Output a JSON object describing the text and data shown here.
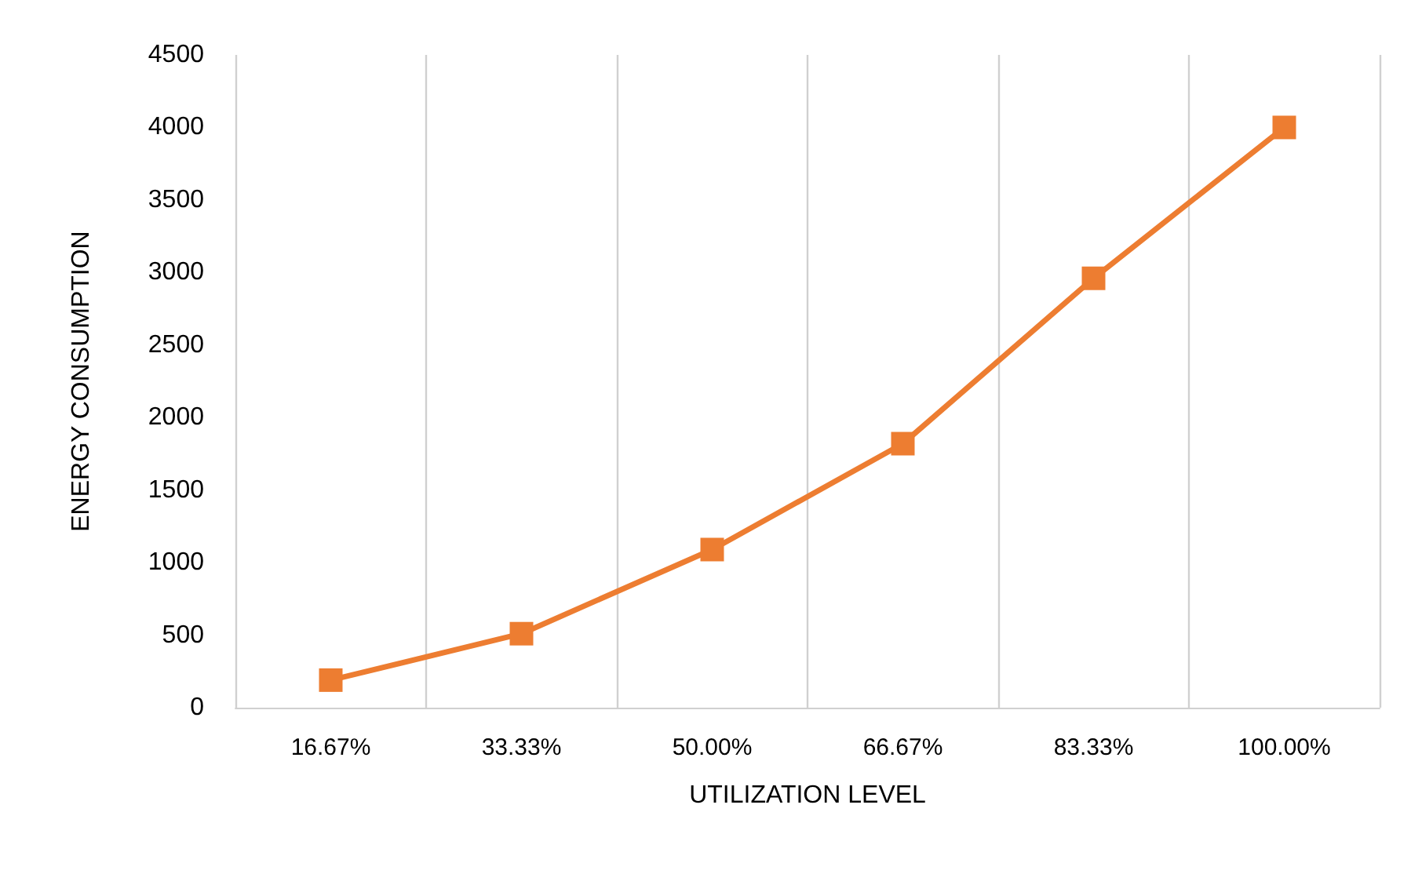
{
  "chart_data": {
    "type": "line",
    "xlabel": "UTILIZATION LEVEL",
    "ylabel": "ENERGY CONSUMPTION",
    "categories": [
      "16.67%",
      "33.33%",
      "50.00%",
      "66.67%",
      "83.33%",
      "100.00%"
    ],
    "series": [
      {
        "color": "#ed7d31",
        "values": [
          190,
          510,
          1090,
          1820,
          2960,
          4000
        ]
      }
    ],
    "ylim": [
      0,
      4500
    ],
    "yticks": [
      0,
      500,
      1000,
      1500,
      2000,
      2500,
      3000,
      3500,
      4000,
      4500
    ],
    "grid": "x",
    "legend": false,
    "marker": "square",
    "line_style": "solid"
  }
}
